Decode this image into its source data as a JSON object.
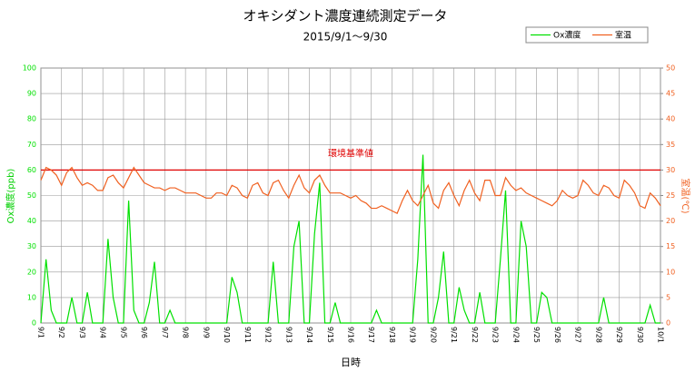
{
  "chart_data": {
    "type": "line",
    "title": "オキシダント濃度連続測定データ",
    "subtitle": "2015/9/1～9/30",
    "xlabel": "日時",
    "ylabel": "Ox濃度(ppb)",
    "y2label": "室温(℃)",
    "xlim": [
      0,
      30
    ],
    "xticks": [
      {
        "value": 0,
        "label": "9/1"
      },
      {
        "value": 1,
        "label": "9/2"
      },
      {
        "value": 2,
        "label": "9/3"
      },
      {
        "value": 3,
        "label": "9/4"
      },
      {
        "value": 4,
        "label": "9/5"
      },
      {
        "value": 5,
        "label": "9/6"
      },
      {
        "value": 6,
        "label": "9/7"
      },
      {
        "value": 7,
        "label": "9/8"
      },
      {
        "value": 8,
        "label": "9/9"
      },
      {
        "value": 9,
        "label": "9/10"
      },
      {
        "value": 10,
        "label": "9/11"
      },
      {
        "value": 11,
        "label": "9/12"
      },
      {
        "value": 12,
        "label": "9/13"
      },
      {
        "value": 13,
        "label": "9/14"
      },
      {
        "value": 14,
        "label": "9/15"
      },
      {
        "value": 15,
        "label": "9/16"
      },
      {
        "value": 16,
        "label": "9/17"
      },
      {
        "value": 17,
        "label": "9/18"
      },
      {
        "value": 18,
        "label": "9/19"
      },
      {
        "value": 19,
        "label": "9/20"
      },
      {
        "value": 20,
        "label": "9/21"
      },
      {
        "value": 21,
        "label": "9/22"
      },
      {
        "value": 22,
        "label": "9/23"
      },
      {
        "value": 23,
        "label": "9/24"
      },
      {
        "value": 24,
        "label": "9/25"
      },
      {
        "value": 25,
        "label": "9/26"
      },
      {
        "value": 26,
        "label": "9/27"
      },
      {
        "value": 27,
        "label": "9/28"
      },
      {
        "value": 28,
        "label": "9/29"
      },
      {
        "value": 29,
        "label": "9/30"
      },
      {
        "value": 30,
        "label": "10/1"
      }
    ],
    "ylim": [
      0,
      100
    ],
    "yticks": [
      0,
      10,
      20,
      30,
      40,
      50,
      60,
      70,
      80,
      90,
      100
    ],
    "y2lim": [
      0,
      50
    ],
    "y2ticks": [
      0,
      5,
      10,
      15,
      20,
      25,
      30,
      35,
      40,
      45,
      50
    ],
    "grid": true,
    "legend": "top-right",
    "annotations": [
      {
        "text": "環境基準値",
        "value": 60,
        "color": "#e00000"
      }
    ],
    "x": [
      0,
      0.25,
      0.5,
      0.75,
      1,
      1.25,
      1.5,
      1.75,
      2,
      2.25,
      2.5,
      2.75,
      3,
      3.25,
      3.5,
      3.75,
      4,
      4.25,
      4.5,
      4.75,
      5,
      5.25,
      5.5,
      5.75,
      6,
      6.25,
      6.5,
      6.75,
      7,
      7.25,
      7.5,
      7.75,
      8,
      8.25,
      8.5,
      8.75,
      9,
      9.25,
      9.5,
      9.75,
      10,
      10.25,
      10.5,
      10.75,
      11,
      11.25,
      11.5,
      11.75,
      12,
      12.25,
      12.5,
      12.75,
      13,
      13.25,
      13.5,
      13.75,
      14,
      14.25,
      14.5,
      14.75,
      15,
      15.25,
      15.5,
      15.75,
      16,
      16.25,
      16.5,
      16.75,
      17,
      17.25,
      17.5,
      17.75,
      18,
      18.25,
      18.5,
      18.75,
      19,
      19.25,
      19.5,
      19.75,
      20,
      20.25,
      20.5,
      20.75,
      21,
      21.25,
      21.5,
      21.75,
      22,
      22.25,
      22.5,
      22.75,
      23,
      23.25,
      23.5,
      23.75,
      24,
      24.25,
      24.5,
      24.75,
      25,
      25.25,
      25.5,
      25.75,
      26,
      26.25,
      26.5,
      26.75,
      27,
      27.25,
      27.5,
      27.75,
      28,
      28.25,
      28.5,
      28.75,
      29,
      29.25,
      29.5,
      29.75,
      30
    ],
    "series": [
      {
        "name": "Ox濃度",
        "color": "#00e000",
        "axis": "y",
        "values": [
          0,
          25,
          5,
          0,
          0,
          0,
          10,
          0,
          0,
          12,
          0,
          0,
          0,
          33,
          10,
          0,
          0,
          48,
          5,
          0,
          0,
          8,
          24,
          0,
          0,
          5,
          0,
          0,
          0,
          0,
          0,
          0,
          0,
          0,
          0,
          0,
          0,
          18,
          12,
          0,
          0,
          0,
          0,
          0,
          0,
          24,
          0,
          0,
          0,
          30,
          40,
          0,
          0,
          35,
          55,
          0,
          0,
          8,
          0,
          0,
          0,
          0,
          0,
          0,
          0,
          5,
          0,
          0,
          0,
          0,
          0,
          0,
          0,
          25,
          66,
          0,
          0,
          10,
          28,
          0,
          0,
          14,
          5,
          0,
          0,
          12,
          0,
          0,
          0,
          25,
          52,
          0,
          0,
          40,
          30,
          0,
          0,
          12,
          10,
          0,
          0,
          0,
          0,
          0,
          0,
          0,
          0,
          0,
          0,
          10,
          0,
          0,
          0,
          0,
          0,
          0,
          0,
          0,
          7,
          0,
          0
        ]
      },
      {
        "name": "室温",
        "color": "#f06020",
        "axis": "y2",
        "values": [
          28,
          30.5,
          30,
          29,
          27,
          29.5,
          30.5,
          28.5,
          27,
          27.5,
          27,
          26,
          26,
          28.5,
          29,
          27.5,
          26.5,
          28.5,
          30.5,
          29,
          27.5,
          27,
          26.5,
          26.5,
          26,
          26.5,
          26.5,
          26,
          25.5,
          25.5,
          25.5,
          25,
          24.5,
          24.5,
          25.5,
          25.5,
          25,
          27,
          26.5,
          25,
          24.5,
          27,
          27.5,
          25.5,
          25,
          27.5,
          28,
          26,
          24.5,
          27,
          29,
          26.5,
          25.5,
          28,
          29,
          27,
          25.5,
          25.5,
          25.5,
          25,
          24.5,
          25,
          24,
          23.5,
          22.5,
          22.5,
          23,
          22.5,
          22,
          21.5,
          24,
          26,
          24,
          23,
          25,
          27,
          23.5,
          22.5,
          26,
          27.5,
          25,
          23,
          26,
          28,
          25.5,
          24,
          28,
          28,
          25,
          25,
          28.5,
          27,
          26,
          26.5,
          25.5,
          25,
          24.5,
          24,
          23.5,
          23,
          24,
          26,
          25,
          24.5,
          25,
          28,
          27,
          25.5,
          25,
          27,
          26.5,
          25,
          24.5,
          28,
          27,
          25.5,
          23,
          22.5,
          25.5,
          24.5,
          23
        ]
      }
    ]
  }
}
